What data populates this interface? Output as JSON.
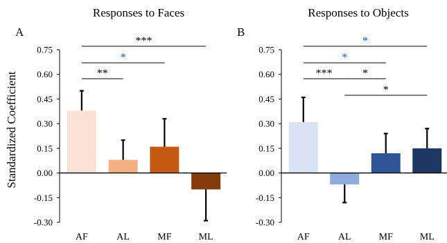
{
  "ylabel": "Standardized Coefficient",
  "significance_colors": {
    "black": "#000000",
    "blue": "#1f4fe0"
  },
  "chart_data": [
    {
      "type": "bar",
      "panel": "A",
      "title": "Responses to Faces",
      "categories": [
        "AF",
        "AL",
        "MF",
        "ML"
      ],
      "values": [
        0.38,
        0.08,
        0.16,
        -0.1
      ],
      "errors": [
        0.12,
        0.12,
        0.17,
        0.19
      ],
      "error_direction": [
        "up",
        "up",
        "up",
        "down"
      ],
      "colors": [
        "#fae3d6",
        "#f4b183",
        "#c55a11",
        "#843c0c"
      ],
      "ylim": [
        -0.3,
        0.75
      ],
      "yticks": [
        "-0.30",
        "-0.15",
        "0.00",
        "0.15",
        "0.30",
        "0.45",
        "0.60",
        "0.75"
      ],
      "ytick_values": [
        -0.3,
        -0.15,
        0.0,
        0.15,
        0.3,
        0.45,
        0.6,
        0.75
      ],
      "significance": [
        {
          "from": "AF",
          "to": "AL",
          "label": "**",
          "color": "black"
        },
        {
          "from": "AF",
          "to": "MF",
          "label": "*",
          "color": "blue"
        },
        {
          "from": "AF",
          "to": "ML",
          "label": "***",
          "color": "black"
        }
      ]
    },
    {
      "type": "bar",
      "panel": "B",
      "title": "Responses to Objects",
      "categories": [
        "AF",
        "AL",
        "MF",
        "ML"
      ],
      "values": [
        0.31,
        -0.07,
        0.12,
        0.15
      ],
      "errors": [
        0.15,
        0.11,
        0.12,
        0.12
      ],
      "error_direction": [
        "up",
        "down",
        "up",
        "up"
      ],
      "colors": [
        "#dae3f3",
        "#8faadc",
        "#2f5597",
        "#1f3864"
      ],
      "ylim": [
        -0.3,
        0.75
      ],
      "yticks": [
        "-0.30",
        "-0.15",
        "0.00",
        "0.15",
        "0.30",
        "0.45",
        "0.60",
        "0.75"
      ],
      "ytick_values": [
        -0.3,
        -0.15,
        0.0,
        0.15,
        0.3,
        0.45,
        0.6,
        0.75
      ],
      "significance": [
        {
          "from": "AF",
          "to": "AL",
          "label": "***",
          "color": "black"
        },
        {
          "from": "AL",
          "to": "MF",
          "label": "*",
          "color": "black"
        },
        {
          "from": "AL",
          "to": "ML",
          "label": "*",
          "color": "black"
        },
        {
          "from": "AF",
          "to": "MF",
          "label": "*",
          "color": "blue"
        },
        {
          "from": "AF",
          "to": "ML",
          "label": "*",
          "color": "blue"
        }
      ]
    }
  ]
}
